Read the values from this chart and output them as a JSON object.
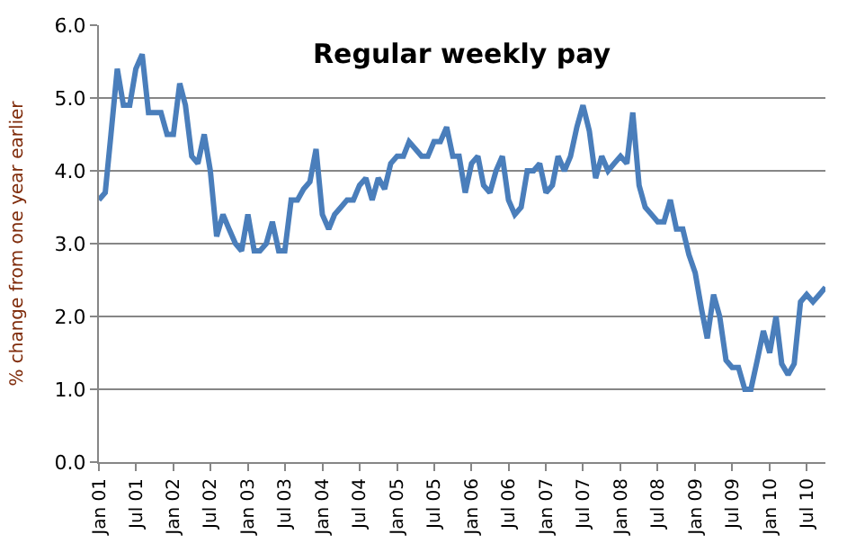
{
  "chart_data": {
    "type": "line",
    "title": "Regular weekly pay",
    "ylabel": "% change from one year earlier",
    "x": [
      "2001-01",
      "2001-02",
      "2001-03",
      "2001-04",
      "2001-05",
      "2001-06",
      "2001-07",
      "2001-08",
      "2001-09",
      "2001-10",
      "2001-11",
      "2001-12",
      "2002-01",
      "2002-02",
      "2002-03",
      "2002-04",
      "2002-05",
      "2002-06",
      "2002-07",
      "2002-08",
      "2002-09",
      "2002-10",
      "2002-11",
      "2002-12",
      "2003-01",
      "2003-02",
      "2003-03",
      "2003-04",
      "2003-05",
      "2003-06",
      "2003-07",
      "2003-08",
      "2003-09",
      "2003-10",
      "2003-11",
      "2003-12",
      "2004-01",
      "2004-02",
      "2004-03",
      "2004-04",
      "2004-05",
      "2004-06",
      "2004-07",
      "2004-08",
      "2004-09",
      "2004-10",
      "2004-11",
      "2004-12",
      "2005-01",
      "2005-02",
      "2005-03",
      "2005-04",
      "2005-05",
      "2005-06",
      "2005-07",
      "2005-08",
      "2005-09",
      "2005-10",
      "2005-11",
      "2005-12",
      "2006-01",
      "2006-02",
      "2006-03",
      "2006-04",
      "2006-05",
      "2006-06",
      "2006-07",
      "2006-08",
      "2006-09",
      "2006-10",
      "2006-11",
      "2006-12",
      "2007-01",
      "2007-02",
      "2007-03",
      "2007-04",
      "2007-05",
      "2007-06",
      "2007-07",
      "2007-08",
      "2007-09",
      "2007-10",
      "2007-11",
      "2007-12",
      "2008-01",
      "2008-02",
      "2008-03",
      "2008-04",
      "2008-05",
      "2008-06",
      "2008-07",
      "2008-08",
      "2008-09",
      "2008-10",
      "2008-11",
      "2008-12",
      "2009-01",
      "2009-02",
      "2009-03",
      "2009-04",
      "2009-05",
      "2009-06",
      "2009-07",
      "2009-08",
      "2009-09",
      "2009-10",
      "2009-11",
      "2009-12",
      "2010-01",
      "2010-02",
      "2010-03",
      "2010-04",
      "2010-05",
      "2010-06",
      "2010-07",
      "2010-08",
      "2010-09",
      "2010-10"
    ],
    "series": [
      {
        "color": "#4a7ebb",
        "values": [
          3.6,
          3.7,
          4.5,
          5.4,
          4.9,
          4.9,
          5.4,
          5.6,
          4.8,
          4.8,
          4.8,
          4.5,
          4.5,
          5.2,
          4.9,
          4.2,
          4.1,
          4.5,
          4.0,
          3.1,
          3.4,
          3.2,
          3.0,
          2.9,
          3.4,
          2.9,
          2.9,
          3.0,
          3.3,
          2.9,
          2.9,
          3.6,
          3.6,
          3.75,
          3.85,
          4.3,
          3.4,
          3.2,
          3.4,
          3.5,
          3.6,
          3.6,
          3.8,
          3.9,
          3.6,
          3.9,
          3.75,
          4.1,
          4.2,
          4.2,
          4.4,
          4.3,
          4.2,
          4.2,
          4.4,
          4.4,
          4.6,
          4.2,
          4.2,
          3.7,
          4.1,
          4.2,
          3.8,
          3.7,
          4.0,
          4.2,
          3.6,
          3.4,
          3.5,
          4.0,
          4.0,
          4.1,
          3.7,
          3.8,
          4.2,
          4.0,
          4.2,
          4.6,
          4.9,
          4.55,
          3.9,
          4.2,
          4.0,
          4.1,
          4.2,
          4.1,
          4.8,
          3.8,
          3.5,
          3.4,
          3.3,
          3.3,
          3.6,
          3.2,
          3.2,
          2.85,
          2.6,
          2.1,
          1.7,
          2.3,
          2.0,
          1.4,
          1.3,
          1.3,
          1.0,
          1.0,
          1.4,
          1.8,
          1.5,
          2.0,
          1.35,
          1.2,
          1.35,
          2.2,
          2.3,
          2.2,
          2.3,
          2.4
        ]
      }
    ],
    "xlim": [
      "2001-01",
      "2010-10"
    ],
    "xticks": [
      {
        "value": "2001-01",
        "label": "Jan 01"
      },
      {
        "value": "2001-07",
        "label": "Jul 01"
      },
      {
        "value": "2002-01",
        "label": "Jan 02"
      },
      {
        "value": "2002-07",
        "label": "Jul 02"
      },
      {
        "value": "2003-01",
        "label": "Jan 03"
      },
      {
        "value": "2003-07",
        "label": "Jul 03"
      },
      {
        "value": "2004-01",
        "label": "Jan 04"
      },
      {
        "value": "2004-07",
        "label": "Jul 04"
      },
      {
        "value": "2005-01",
        "label": "Jan 05"
      },
      {
        "value": "2005-07",
        "label": "Jul 05"
      },
      {
        "value": "2006-01",
        "label": "Jan 06"
      },
      {
        "value": "2006-07",
        "label": "Jul 06"
      },
      {
        "value": "2007-01",
        "label": "Jan 07"
      },
      {
        "value": "2007-07",
        "label": "Jul 07"
      },
      {
        "value": "2008-01",
        "label": "Jan 08"
      },
      {
        "value": "2008-07",
        "label": "Jul 08"
      },
      {
        "value": "2009-01",
        "label": "Jan 09"
      },
      {
        "value": "2009-07",
        "label": "Jul 09"
      },
      {
        "value": "2010-01",
        "label": "Jan 10"
      },
      {
        "value": "2010-07",
        "label": "Jul 10"
      }
    ],
    "ylim": [
      0,
      6
    ],
    "yticks": [
      {
        "value": 0,
        "label": "0.0"
      },
      {
        "value": 1,
        "label": "1.0"
      },
      {
        "value": 2,
        "label": "2.0"
      },
      {
        "value": 3,
        "label": "3.0"
      },
      {
        "value": 4,
        "label": "4.0"
      },
      {
        "value": 5,
        "label": "5.0"
      },
      {
        "value": 6,
        "label": "6.0"
      }
    ],
    "grid": "y",
    "marker": "none",
    "line_style": "solid"
  }
}
